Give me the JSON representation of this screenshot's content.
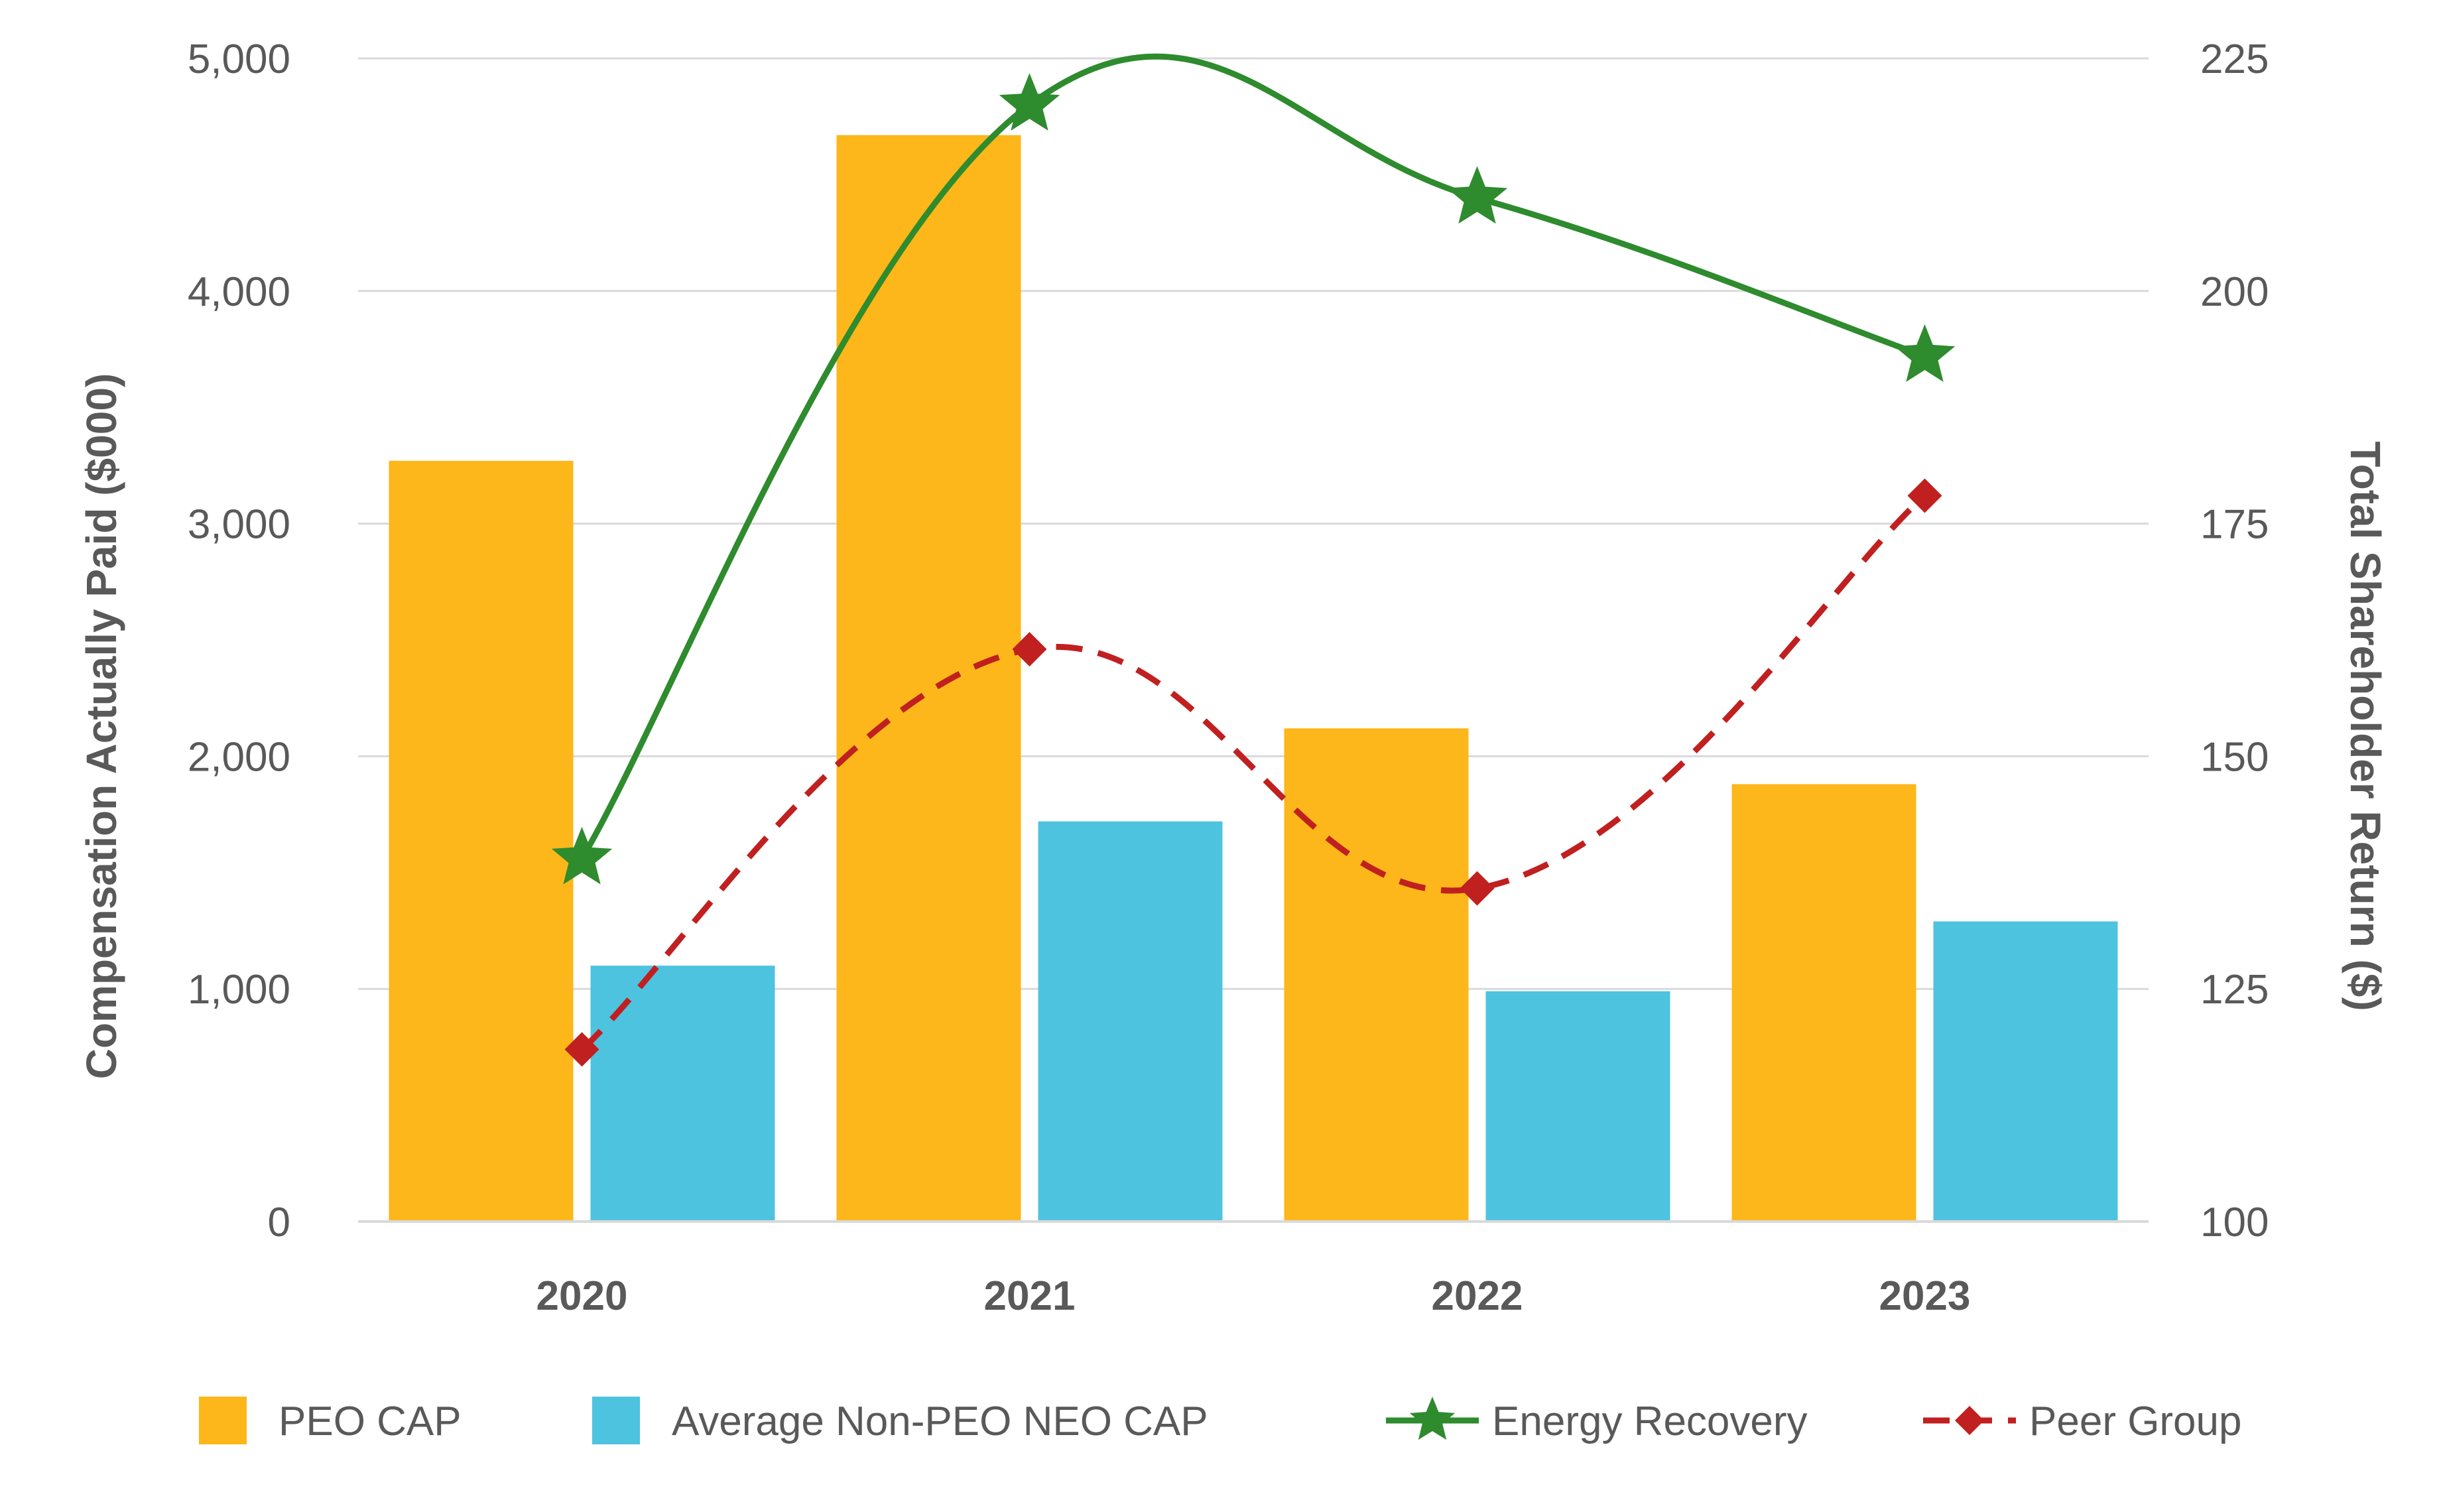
{
  "chart_data": {
    "type": "bar",
    "categories": [
      "2020",
      "2021",
      "2022",
      "2023"
    ],
    "series": [
      {
        "name": "PEO CAP",
        "kind": "bar",
        "axis": "left",
        "color": "#FDB71A",
        "values": [
          3270,
          4670,
          2120,
          1880
        ]
      },
      {
        "name": "Average Non-PEO NEO CAP",
        "kind": "bar",
        "axis": "left",
        "color": "#4EC3E0",
        "values": [
          1100,
          1720,
          990,
          1290
        ]
      },
      {
        "name": "Energy Recovery",
        "kind": "line",
        "axis": "right",
        "color": "#2E8B2E",
        "marker": "star",
        "dash": "solid",
        "values": [
          139,
          220,
          210,
          193
        ]
      },
      {
        "name": "Peer Group",
        "kind": "line",
        "axis": "right",
        "color": "#C0201F",
        "marker": "diamond",
        "dash": "dashed",
        "values": [
          118.5,
          161.5,
          135.8,
          178
        ]
      }
    ],
    "ylabel": "Compensation Actually Paid ($000)",
    "y2label": "Total Shareholder Return ($)",
    "ylim": [
      0,
      5000
    ],
    "y2lim": [
      100,
      225
    ],
    "yticks": [
      "0",
      "1,000",
      "2,000",
      "3,000",
      "4,000",
      "5,000"
    ],
    "y2ticks": [
      "100",
      "125",
      "150",
      "175",
      "200",
      "225"
    ],
    "grid": true,
    "legend_position": "bottom"
  }
}
